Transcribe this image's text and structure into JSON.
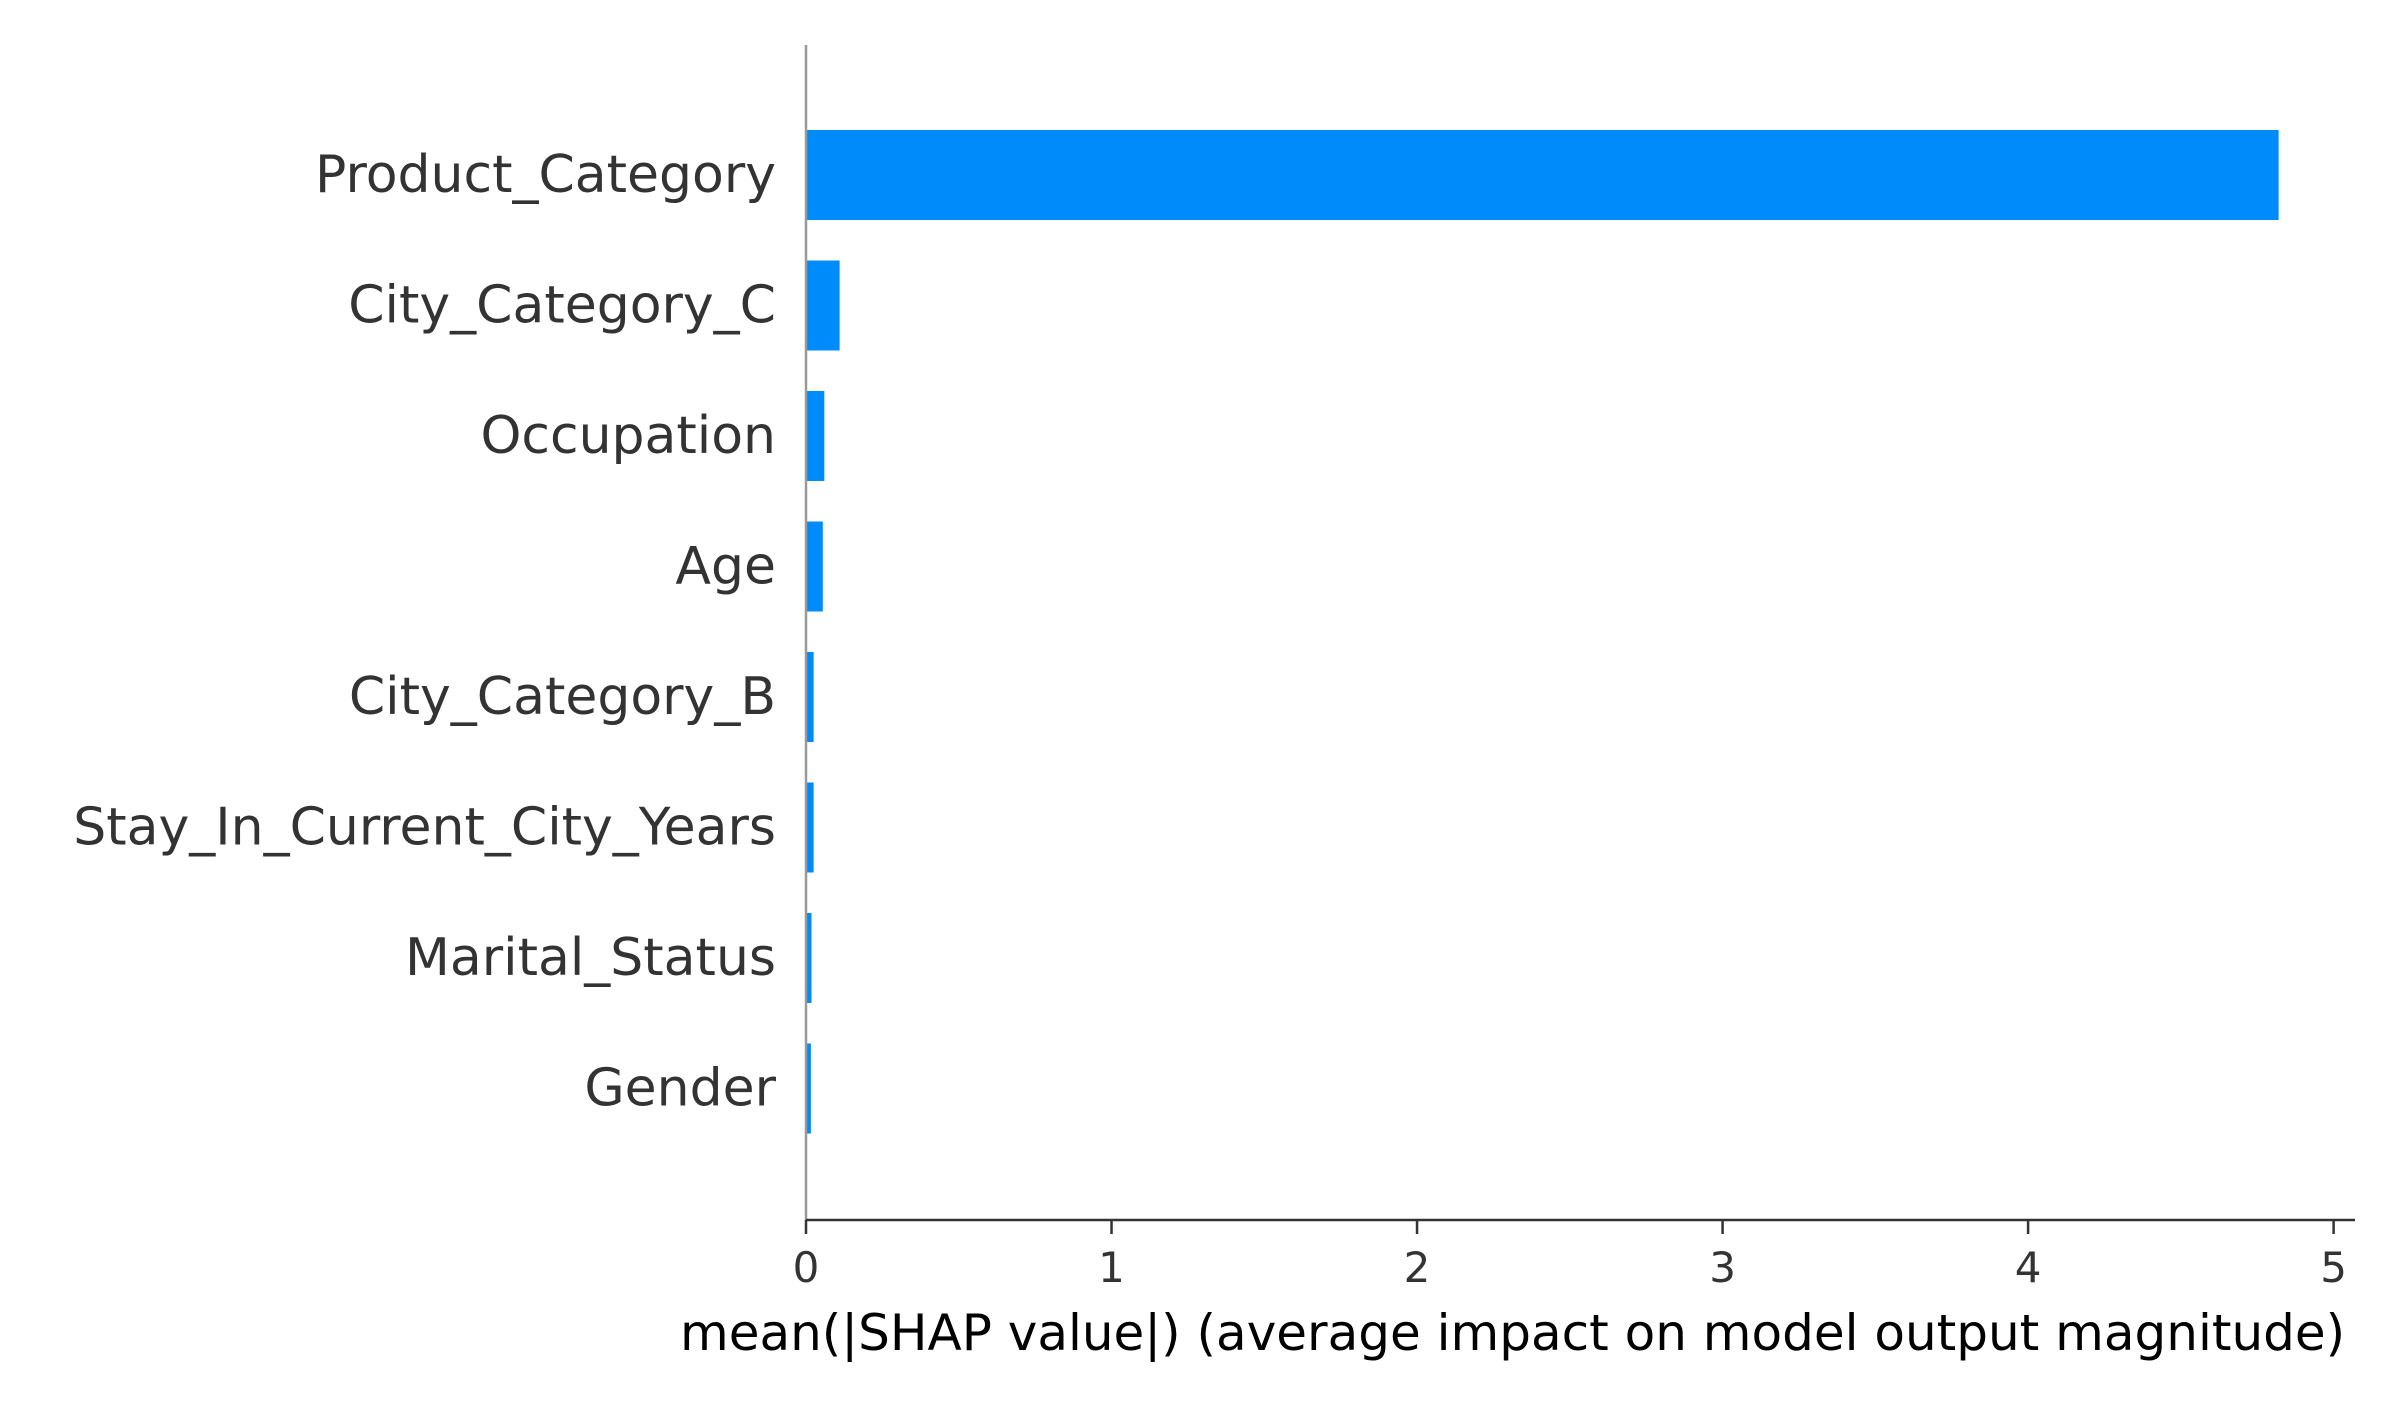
{
  "chart_data": {
    "type": "bar",
    "orientation": "horizontal",
    "categories": [
      "Product_Category",
      "City_Category_C",
      "Occupation",
      "Age",
      "City_Category_B",
      "Stay_In_Current_City_Years",
      "Marital_Status",
      "Gender"
    ],
    "values": [
      4.82,
      0.11,
      0.06,
      0.055,
      0.025,
      0.025,
      0.018,
      0.016
    ],
    "title": "",
    "xlabel": "mean(|SHAP value|) (average impact on model output magnitude)",
    "ylabel": "",
    "xlim": [
      0,
      5.07
    ],
    "xticks": [
      0,
      1,
      2,
      3,
      4,
      5
    ],
    "xtick_labels": [
      "0",
      "1",
      "2",
      "3",
      "4",
      "5"
    ],
    "grid": false,
    "legend": "none",
    "bar_color": "#008bfb",
    "text_color": "#333333",
    "axis_color": "#333333",
    "zero_line_color": "#999999"
  }
}
